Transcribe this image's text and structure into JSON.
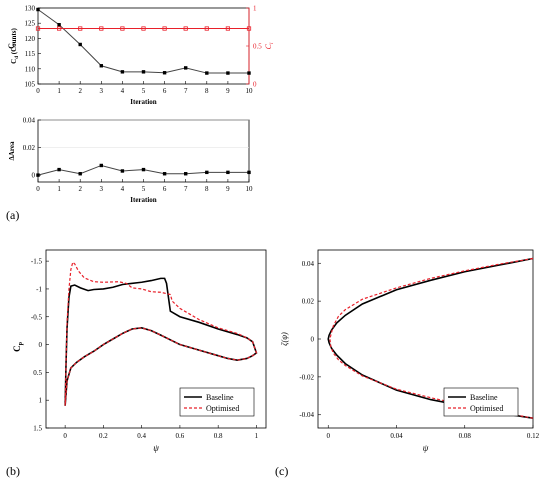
{
  "panel_labels": {
    "a": "(a)",
    "b": "(b)",
    "c": "(c)"
  },
  "colors": {
    "black": "#000000",
    "red": "#e8202a",
    "grid": "#e6e6e6",
    "gray_line": "#444444"
  },
  "chart_data": [
    {
      "id": "a_top",
      "type": "line",
      "xlabel": "Iteration",
      "ylabel": "C_d (Counts)",
      "ylabel_right": "C_l",
      "xlim": [
        0,
        10
      ],
      "ylim": [
        105,
        130
      ],
      "ylim_right": [
        0,
        1
      ],
      "xticks": [
        "0",
        "1",
        "2",
        "3",
        "4",
        "5",
        "6",
        "7",
        "8",
        "9",
        "10"
      ],
      "yticks": [
        "105",
        "110",
        "115",
        "120",
        "125",
        "130"
      ],
      "yticks_right": [
        "0",
        "0.5",
        "1"
      ],
      "x": [
        0,
        1,
        2,
        3,
        4,
        5,
        6,
        7,
        8,
        9,
        10
      ],
      "series": [
        {
          "axis": "left",
          "values": [
            129.5,
            124.5,
            118.0,
            111.0,
            109.0,
            109.0,
            108.7,
            110.3,
            108.6,
            108.6,
            108.6
          ]
        },
        {
          "axis": "right",
          "values": [
            0.73,
            0.73,
            0.73,
            0.73,
            0.73,
            0.73,
            0.73,
            0.73,
            0.73,
            0.73,
            0.73
          ]
        }
      ]
    },
    {
      "id": "a_bottom",
      "type": "line",
      "xlabel": "Iteration",
      "ylabel": "ΔArea",
      "xlim": [
        0,
        10
      ],
      "ylim": [
        -0.005,
        0.04
      ],
      "xticks": [
        "0",
        "1",
        "2",
        "3",
        "4",
        "5",
        "6",
        "7",
        "8",
        "9",
        "10"
      ],
      "yticks": [
        "0",
        "0.02",
        "0.04"
      ],
      "grid": true,
      "x": [
        0,
        1,
        2,
        3,
        4,
        5,
        6,
        7,
        8,
        9,
        10
      ],
      "series": [
        {
          "values": [
            0.0,
            0.004,
            0.001,
            0.007,
            0.003,
            0.004,
            0.001,
            0.001,
            0.002,
            0.002,
            0.002
          ]
        }
      ]
    },
    {
      "id": "b",
      "type": "line",
      "xlabel": "ψ",
      "ylabel": "C_p",
      "xlim": [
        -0.1,
        1.05
      ],
      "ylim_reversed": [
        -1.7,
        1.5
      ],
      "xticks": [
        "0",
        "0.2",
        "0.4",
        "0.6",
        "0.8",
        "1"
      ],
      "yticks": [
        "-1.5",
        "-1",
        "-0.5",
        "0",
        "0.5",
        "1",
        "1.5"
      ],
      "legend_position": "bottom-right",
      "series": [
        {
          "name": "Baseline",
          "style": "solid",
          "upper": [
            [
              0.0,
              1.1
            ],
            [
              0.005,
              0.3
            ],
            [
              0.01,
              -0.3
            ],
            [
              0.02,
              -0.85
            ],
            [
              0.03,
              -1.05
            ],
            [
              0.05,
              -1.07
            ],
            [
              0.08,
              -1.02
            ],
            [
              0.12,
              -0.97
            ],
            [
              0.15,
              -0.99
            ],
            [
              0.2,
              -1.0
            ],
            [
              0.25,
              -1.03
            ],
            [
              0.3,
              -1.08
            ],
            [
              0.4,
              -1.12
            ],
            [
              0.45,
              -1.15
            ],
            [
              0.5,
              -1.19
            ],
            [
              0.52,
              -1.19
            ],
            [
              0.53,
              -1.1
            ],
            [
              0.55,
              -0.6
            ],
            [
              0.6,
              -0.5
            ],
            [
              0.7,
              -0.4
            ],
            [
              0.8,
              -0.28
            ],
            [
              0.9,
              -0.18
            ],
            [
              0.95,
              -0.12
            ],
            [
              0.98,
              -0.05
            ],
            [
              1.0,
              0.15
            ]
          ],
          "lower": [
            [
              0.0,
              1.1
            ],
            [
              0.01,
              0.65
            ],
            [
              0.03,
              0.42
            ],
            [
              0.06,
              0.32
            ],
            [
              0.1,
              0.22
            ],
            [
              0.15,
              0.12
            ],
            [
              0.2,
              0.0
            ],
            [
              0.25,
              -0.1
            ],
            [
              0.3,
              -0.2
            ],
            [
              0.35,
              -0.28
            ],
            [
              0.4,
              -0.3
            ],
            [
              0.45,
              -0.25
            ],
            [
              0.5,
              -0.17
            ],
            [
              0.6,
              0.0
            ],
            [
              0.7,
              0.1
            ],
            [
              0.8,
              0.2
            ],
            [
              0.85,
              0.25
            ],
            [
              0.9,
              0.28
            ],
            [
              0.95,
              0.25
            ],
            [
              0.98,
              0.2
            ],
            [
              1.0,
              0.15
            ]
          ]
        },
        {
          "name": "Optimised",
          "style": "dashed",
          "upper": [
            [
              0.0,
              1.1
            ],
            [
              0.005,
              0.3
            ],
            [
              0.01,
              -0.4
            ],
            [
              0.02,
              -1.0
            ],
            [
              0.03,
              -1.35
            ],
            [
              0.04,
              -1.48
            ],
            [
              0.05,
              -1.45
            ],
            [
              0.07,
              -1.32
            ],
            [
              0.1,
              -1.2
            ],
            [
              0.15,
              -1.13
            ],
            [
              0.2,
              -1.12
            ],
            [
              0.28,
              -1.13
            ],
            [
              0.32,
              -1.1
            ],
            [
              0.35,
              -1.02
            ],
            [
              0.4,
              -1.0
            ],
            [
              0.45,
              -0.95
            ],
            [
              0.5,
              -0.94
            ],
            [
              0.55,
              -0.9
            ],
            [
              0.56,
              -0.78
            ],
            [
              0.6,
              -0.65
            ],
            [
              0.7,
              -0.45
            ],
            [
              0.8,
              -0.3
            ],
            [
              0.9,
              -0.2
            ],
            [
              0.95,
              -0.12
            ],
            [
              0.98,
              -0.05
            ],
            [
              1.0,
              0.15
            ]
          ],
          "lower": [
            [
              0.0,
              1.1
            ],
            [
              0.01,
              0.65
            ],
            [
              0.03,
              0.42
            ],
            [
              0.06,
              0.32
            ],
            [
              0.1,
              0.22
            ],
            [
              0.15,
              0.12
            ],
            [
              0.2,
              0.0
            ],
            [
              0.25,
              -0.1
            ],
            [
              0.3,
              -0.2
            ],
            [
              0.35,
              -0.28
            ],
            [
              0.4,
              -0.3
            ],
            [
              0.45,
              -0.25
            ],
            [
              0.5,
              -0.17
            ],
            [
              0.6,
              0.0
            ],
            [
              0.7,
              0.1
            ],
            [
              0.8,
              0.2
            ],
            [
              0.85,
              0.25
            ],
            [
              0.9,
              0.28
            ],
            [
              0.95,
              0.25
            ],
            [
              0.98,
              0.2
            ],
            [
              1.0,
              0.15
            ]
          ]
        }
      ]
    },
    {
      "id": "c",
      "type": "line",
      "xlabel": "ψ",
      "ylabel": "ζ(ψ)",
      "xlim": [
        -0.006,
        0.12
      ],
      "ylim": [
        -0.047,
        0.047
      ],
      "xticks": [
        "0",
        "0.04",
        "0.08",
        "0.12"
      ],
      "yticks": [
        "0.04",
        "0.02",
        "0",
        "-0.02",
        "-0.04"
      ],
      "legend_position": "bottom-right",
      "series": [
        {
          "name": "Baseline",
          "style": "solid",
          "upper": [
            [
              0.12,
              0.0425
            ],
            [
              0.1,
              0.039
            ],
            [
              0.08,
              0.0355
            ],
            [
              0.06,
              0.031
            ],
            [
              0.04,
              0.026
            ],
            [
              0.02,
              0.0185
            ],
            [
              0.01,
              0.0125
            ],
            [
              0.005,
              0.0085
            ],
            [
              0.002,
              0.0048
            ],
            [
              0.0005,
              0.002
            ],
            [
              0.0,
              0.0
            ]
          ],
          "lower": [
            [
              0.0,
              0.0
            ],
            [
              0.0005,
              -0.002
            ],
            [
              0.002,
              -0.005
            ],
            [
              0.005,
              -0.0085
            ],
            [
              0.01,
              -0.013
            ],
            [
              0.02,
              -0.019
            ],
            [
              0.04,
              -0.027
            ],
            [
              0.06,
              -0.032
            ],
            [
              0.08,
              -0.0355
            ],
            [
              0.1,
              -0.039
            ],
            [
              0.12,
              -0.0418
            ]
          ]
        },
        {
          "name": "Optimised",
          "style": "dashed",
          "upper": [
            [
              0.12,
              0.0425
            ],
            [
              0.1,
              0.0395
            ],
            [
              0.08,
              0.036
            ],
            [
              0.06,
              0.032
            ],
            [
              0.04,
              0.027
            ],
            [
              0.02,
              0.021
            ],
            [
              0.01,
              0.0155
            ],
            [
              0.006,
              0.012
            ],
            [
              0.003,
              0.007
            ],
            [
              0.0015,
              0.002
            ],
            [
              0.001,
              0.0
            ]
          ],
          "lower": [
            [
              0.001,
              0.0
            ],
            [
              0.0015,
              -0.004
            ],
            [
              0.003,
              -0.0075
            ],
            [
              0.006,
              -0.011
            ],
            [
              0.01,
              -0.014
            ],
            [
              0.02,
              -0.0195
            ],
            [
              0.04,
              -0.0265
            ],
            [
              0.06,
              -0.031
            ],
            [
              0.08,
              -0.035
            ],
            [
              0.1,
              -0.0385
            ],
            [
              0.12,
              -0.0418
            ]
          ]
        }
      ]
    }
  ]
}
